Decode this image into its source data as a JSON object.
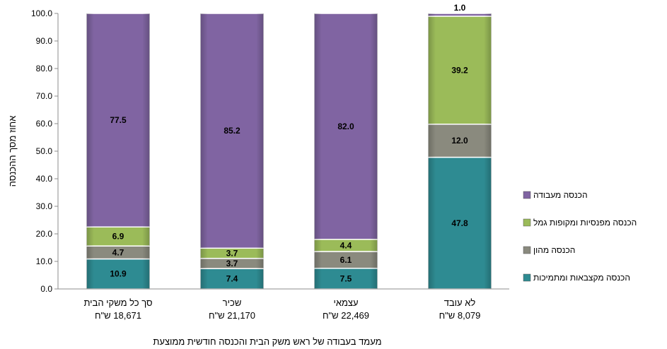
{
  "chart_data": {
    "type": "bar",
    "stacked": true,
    "categories": [
      {
        "line1": "סך כל משקי הבית",
        "line2": "18,671 ש\"ח"
      },
      {
        "line1": "שכיר",
        "line2": "21,170 ש\"ח"
      },
      {
        "line1": "עצמאי",
        "line2": "22,469 ש\"ח"
      },
      {
        "line1": "לא עובד",
        "line2": "8,079 ש\"ח"
      }
    ],
    "series": [
      {
        "name": "הכנסה מקצבאות ומתמיכות",
        "color": "#2E8B92",
        "values": [
          10.9,
          7.4,
          7.5,
          47.8
        ]
      },
      {
        "name": "הכנסה מהון",
        "color": "#8A8A7E",
        "values": [
          4.7,
          3.7,
          6.1,
          12.0
        ]
      },
      {
        "name": "הכנסה מפנסיות ומקופות גמל",
        "color": "#9BBB59",
        "values": [
          6.9,
          3.7,
          4.4,
          39.2
        ]
      },
      {
        "name": "הכנסה מעבודה",
        "color": "#8064A2",
        "values": [
          77.5,
          85.2,
          82.0,
          1.0
        ]
      }
    ],
    "value_labels": [
      [
        "10.9",
        "7.4",
        "7.5",
        "47.8"
      ],
      [
        "4.7",
        "3.7",
        "6.1",
        "12.0"
      ],
      [
        "6.9",
        "3.7",
        "4.4",
        "39.2"
      ],
      [
        "77.5",
        "85.2",
        "82.0",
        "1.0"
      ]
    ],
    "yticks": [
      "0.0",
      "10.0",
      "20.0",
      "30.0",
      "40.0",
      "50.0",
      "60.0",
      "70.0",
      "80.0",
      "90.0",
      "100.0"
    ],
    "ylim": [
      0,
      100
    ],
    "xlabel": "מעמד בעבודה של ראש משק הבית והכנסה חודשית ממוצעת",
    "ylabel": "אחוז מסך ההכנסה",
    "legend_position": "right",
    "legend_order": [
      3,
      2,
      1,
      0
    ],
    "grid": false
  }
}
